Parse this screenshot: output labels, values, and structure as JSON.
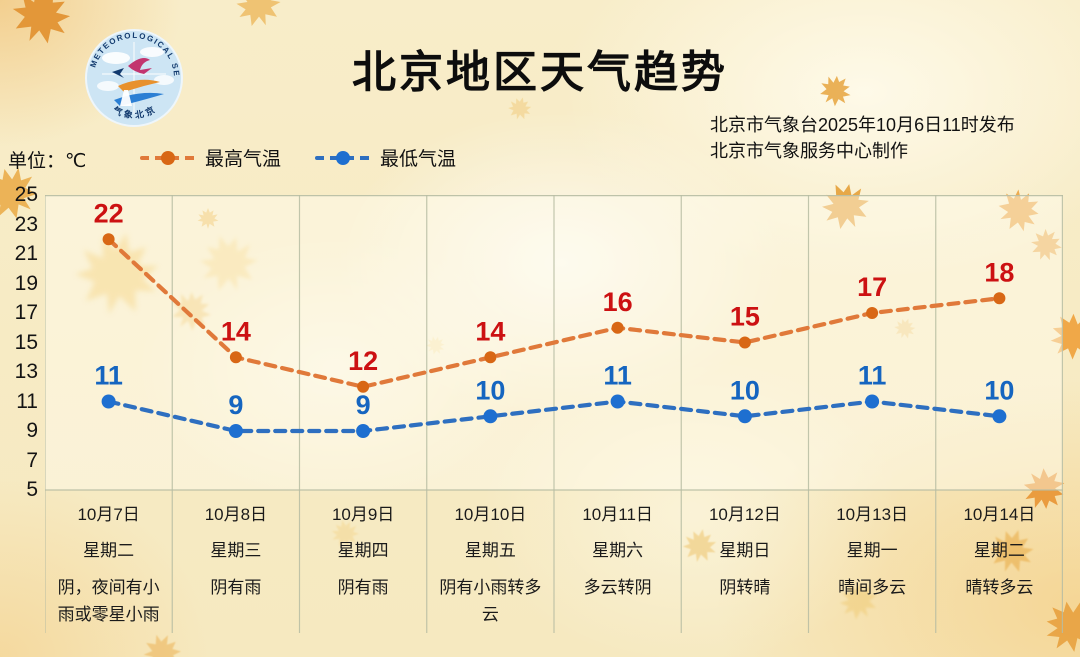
{
  "header": {
    "title": "北京地区天气趋势",
    "issue_line1": "北京市气象台2025年10月6日11时发布",
    "issue_line2": "北京市气象服务中心制作",
    "logo_arc_text": "METEOROLOGICAL SERVICE",
    "logo_bottom_text": "气象北京"
  },
  "unit_label": "单位：℃",
  "legend": [
    {
      "label": "最高气温",
      "color": "#e0762e"
    },
    {
      "label": "最低气温",
      "color": "#2a6fc0"
    }
  ],
  "chart_data": {
    "type": "line",
    "x": [
      "10月7日",
      "10月8日",
      "10月9日",
      "10月10日",
      "10月11日",
      "10月12日",
      "10月13日",
      "10月14日"
    ],
    "weekdays": [
      "星期二",
      "星期三",
      "星期四",
      "星期五",
      "星期六",
      "星期日",
      "星期一",
      "星期二"
    ],
    "weather": [
      "阴，夜间有小雨或零星小雨",
      "阴有雨",
      "阴有雨",
      "阴有小雨转多云",
      "多云转阴",
      "阴转晴",
      "晴间多云",
      "晴转多云"
    ],
    "series": [
      {
        "name": "最高气温",
        "values": [
          22,
          14,
          12,
          14,
          16,
          15,
          17,
          18
        ],
        "line_color": "#e0793a",
        "marker_color": "#d86715",
        "label_color": "#cc1112"
      },
      {
        "name": "最低气温",
        "values": [
          11,
          9,
          9,
          10,
          11,
          10,
          11,
          10
        ],
        "line_color": "#2e6fc0",
        "marker_color": "#1e6fd0",
        "label_color": "#1565c0"
      }
    ],
    "ylim": [
      5,
      25
    ],
    "yticks": [
      25,
      23,
      21,
      19,
      17,
      15,
      13,
      11,
      9,
      7,
      5
    ],
    "grid": "vertical-only",
    "legend_position": "top-left",
    "grid_color": "#b7bda3"
  }
}
